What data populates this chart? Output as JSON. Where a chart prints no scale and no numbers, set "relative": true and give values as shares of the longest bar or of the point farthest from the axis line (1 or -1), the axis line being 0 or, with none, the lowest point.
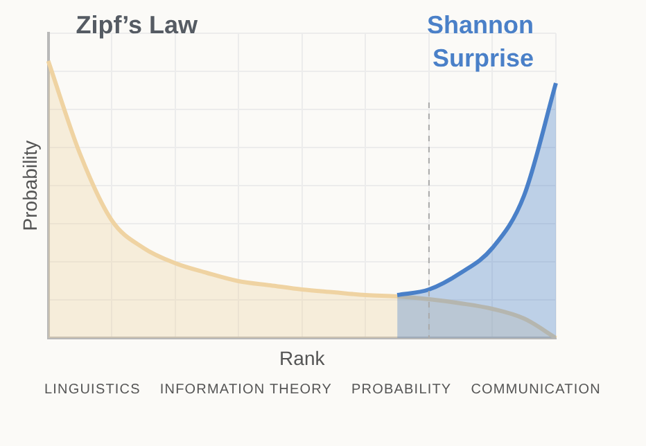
{
  "chart_data": {
    "type": "area",
    "relative": true,
    "xlabel": "Rank",
    "ylabel": "Probability",
    "grid": true,
    "legend": false,
    "marker": "none",
    "categories": [
      null,
      null,
      null,
      null,
      null,
      null,
      null,
      null,
      null,
      null,
      null,
      null,
      null,
      null,
      null,
      null,
      null
    ],
    "series": [
      {
        "name": "Zipf’s Law",
        "color": "#efd3a2",
        "values": [
          1.0,
          0.665,
          0.425,
          0.325,
          0.27,
          0.235,
          0.205,
          0.19,
          0.175,
          0.165,
          0.155,
          0.15,
          0.14,
          0.125,
          0.105,
          0.07,
          0.0
        ]
      },
      {
        "name": "Shannon Surprise",
        "color": "#4a80c8",
        "values": [
          null,
          null,
          null,
          null,
          null,
          null,
          null,
          null,
          null,
          null,
          null,
          0.155,
          0.175,
          0.235,
          0.325,
          0.515,
          0.92
        ]
      }
    ],
    "annotations": [
      "LINGUISTICS",
      "INFORMATION THEORY",
      "PROBABILITY",
      "COMMUNICATION"
    ]
  }
}
